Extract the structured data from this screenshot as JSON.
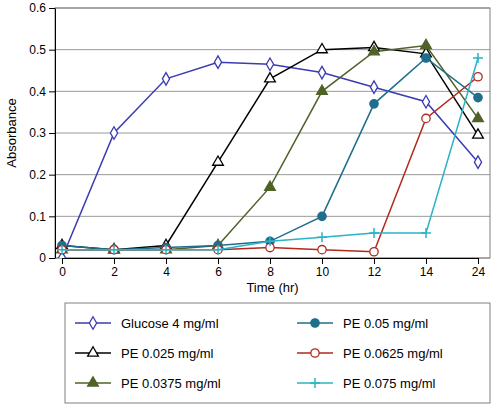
{
  "chart_data": {
    "type": "line",
    "x_label": "Time (hr)",
    "y_label": "Absorbance",
    "categories": [
      "0",
      "2",
      "4",
      "6",
      "8",
      "10",
      "12",
      "14",
      "24"
    ],
    "ylim": [
      0,
      0.6
    ],
    "yticks": [
      0,
      0.1,
      0.2,
      0.3,
      0.4,
      0.5,
      0.6
    ],
    "grid": true,
    "legend": "bottom",
    "series": [
      {
        "name": "Glucose 4 mg/ml",
        "color": "#3b3bb3",
        "marker": "diamond-open",
        "line_style": "solid",
        "values": [
          0.0,
          0.3,
          0.43,
          0.47,
          0.465,
          0.445,
          0.41,
          0.375,
          0.23
        ]
      },
      {
        "name": "PE 0.025 mg/ml",
        "color": "#000000",
        "marker": "triangle-open",
        "line_style": "solid",
        "values": [
          0.03,
          0.02,
          0.03,
          0.23,
          0.43,
          0.5,
          0.505,
          0.49,
          0.295
        ]
      },
      {
        "name": "PE 0.0375 mg/ml",
        "color": "#4f6228",
        "marker": "triangle",
        "line_style": "solid",
        "values": [
          0.02,
          0.02,
          0.02,
          0.03,
          0.17,
          0.4,
          0.495,
          0.51,
          0.335
        ]
      },
      {
        "name": "PE 0.05 mg/ml",
        "color": "#1f6e8c",
        "marker": "circle",
        "line_style": "solid",
        "values": [
          0.03,
          0.02,
          0.025,
          0.03,
          0.04,
          0.1,
          0.37,
          0.48,
          0.385
        ]
      },
      {
        "name": "PE 0.0625 mg/ml",
        "color": "#b02a1e",
        "marker": "circle-open",
        "line_style": "solid",
        "values": [
          0.02,
          0.02,
          0.02,
          0.02,
          0.025,
          0.02,
          0.015,
          0.335,
          0.435
        ]
      },
      {
        "name": "PE 0.075 mg/ml",
        "color": "#2ab3c8",
        "marker": "plus",
        "line_style": "solid",
        "values": [
          0.02,
          0.02,
          0.02,
          0.02,
          0.04,
          0.05,
          0.06,
          0.06,
          0.48
        ]
      }
    ]
  }
}
